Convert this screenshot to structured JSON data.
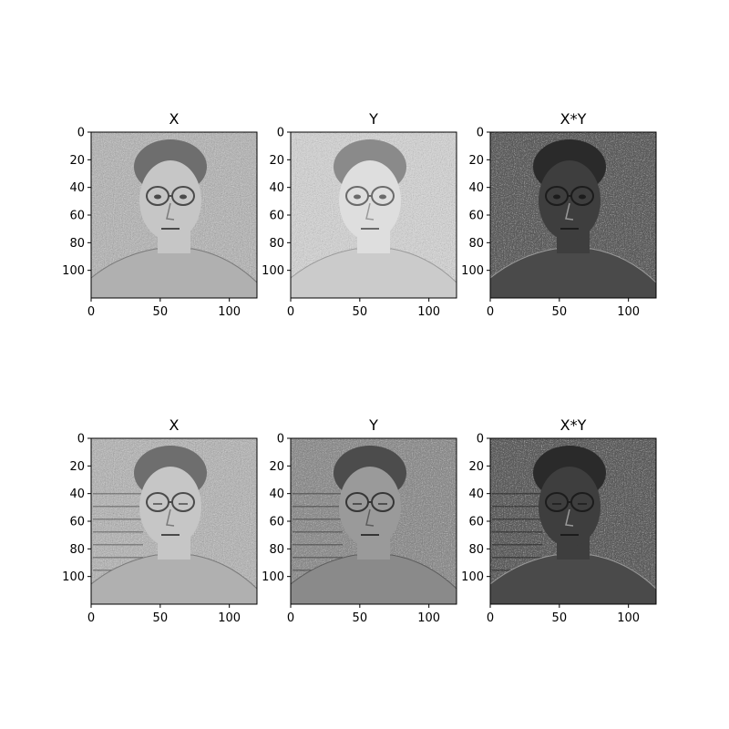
{
  "chart_data": [
    {
      "type": "heatmap",
      "title": "X",
      "xticks": [
        0,
        50,
        100
      ],
      "yticks": [
        0,
        20,
        40,
        60,
        80,
        100
      ],
      "xlim": [
        0,
        120
      ],
      "ylim": [
        120,
        0
      ],
      "colormap": "gray",
      "tone": "light",
      "content": "grayscale face image"
    },
    {
      "type": "heatmap",
      "title": "Y",
      "xticks": [
        0,
        50,
        100
      ],
      "yticks": [
        0,
        20,
        40,
        60,
        80,
        100
      ],
      "xlim": [
        0,
        120
      ],
      "ylim": [
        120,
        0
      ],
      "colormap": "gray",
      "tone": "very-light",
      "content": "grayscale face image"
    },
    {
      "type": "heatmap",
      "title": "X*Y",
      "xticks": [
        0,
        50,
        100
      ],
      "yticks": [
        0,
        20,
        40,
        60,
        80,
        100
      ],
      "xlim": [
        0,
        120
      ],
      "ylim": [
        120,
        0
      ],
      "colormap": "gray",
      "tone": "dark",
      "content": "grayscale face image"
    },
    {
      "type": "heatmap",
      "title": "X",
      "xticks": [
        0,
        50,
        100
      ],
      "yticks": [
        0,
        20,
        40,
        60,
        80,
        100
      ],
      "xlim": [
        0,
        120
      ],
      "ylim": [
        120,
        0
      ],
      "colormap": "gray",
      "tone": "light",
      "content": "grayscale face image, eyes closed"
    },
    {
      "type": "heatmap",
      "title": "Y",
      "xticks": [
        0,
        50,
        100
      ],
      "yticks": [
        0,
        20,
        40,
        60,
        80,
        100
      ],
      "xlim": [
        0,
        120
      ],
      "ylim": [
        120,
        0
      ],
      "colormap": "gray",
      "tone": "medium",
      "content": "grayscale face image, eyes closed"
    },
    {
      "type": "heatmap",
      "title": "X*Y",
      "xticks": [
        0,
        50,
        100
      ],
      "yticks": [
        0,
        20,
        40,
        60,
        80,
        100
      ],
      "xlim": [
        0,
        120
      ],
      "ylim": [
        120,
        0
      ],
      "colormap": "gray",
      "tone": "dark",
      "content": "grayscale face image, eyes closed"
    }
  ]
}
